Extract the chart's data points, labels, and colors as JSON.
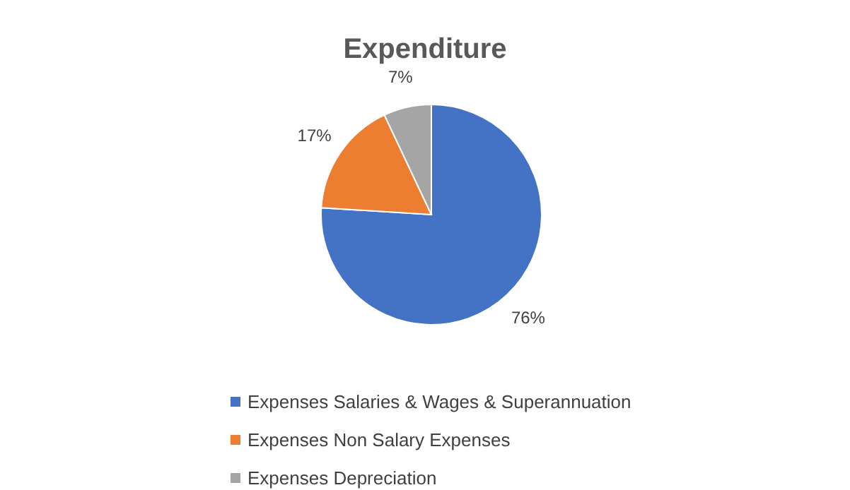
{
  "chart_data": {
    "type": "pie",
    "title": "Expenditure",
    "categories": [
      "Expenses Salaries & Wages & Superannuation",
      "Expenses Non Salary Expenses",
      "Expenses Depreciation"
    ],
    "values": [
      76,
      17,
      7
    ],
    "colors": [
      "#4472c4",
      "#ed7d31",
      "#a5a5a5"
    ],
    "value_labels": [
      "76%",
      "17%",
      "7%"
    ],
    "legend": "bottom"
  }
}
